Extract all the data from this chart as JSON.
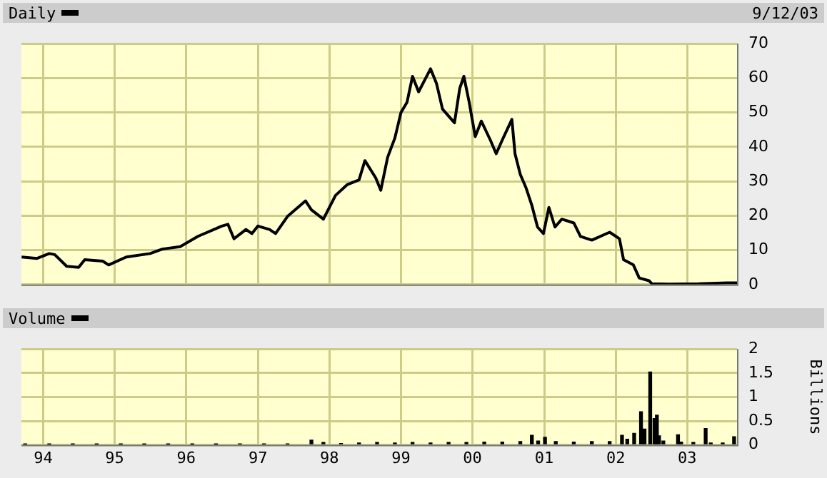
{
  "chart_data": [
    {
      "type": "line",
      "annotations": [
        "9/12/03"
      ],
      "legend": "top left",
      "grid": true,
      "tick_labels": "y",
      "xlim": [
        "1993-09-12",
        "2003-09-12"
      ],
      "xticks": [
        {
          "value": "1994-01-01",
          "label": null
        },
        {
          "value": "1995-01-01",
          "label": null
        },
        {
          "value": "1996-01-01",
          "label": null
        },
        {
          "value": "1997-01-01",
          "label": null
        },
        {
          "value": "1998-01-01",
          "label": null
        },
        {
          "value": "1999-01-01",
          "label": null
        },
        {
          "value": "2000-01-01",
          "label": null
        },
        {
          "value": "2001-01-01",
          "label": null
        },
        {
          "value": "2002-01-01",
          "label": null
        },
        {
          "value": "2003-01-01",
          "label": null
        }
      ],
      "ylim": [
        0,
        70
      ],
      "yticks": [
        0,
        10,
        20,
        30,
        40,
        50,
        60,
        70
      ],
      "series": [
        {
          "name": "Daily",
          "color": "#000000",
          "x": [
            "1993-09-13",
            "1993-12",
            "1994-02",
            "1994-03",
            "1994-05",
            "1994-07",
            "1994-08",
            "1994-11",
            "1994-12",
            "1995-03",
            "1995-07",
            "1995-09",
            "1995-12",
            "1996-03",
            "1996-07",
            "1996-08",
            "1996-09",
            "1996-11",
            "1996-12",
            "1997-01",
            "1997-03",
            "1997-04",
            "1997-06",
            "1997-09",
            "1997-10",
            "1997-12",
            "1998-02",
            "1998-04",
            "1998-06",
            "1998-07",
            "1998-08-25",
            "1998-09-20",
            "1998-10-25",
            "1998-12",
            "1999-01",
            "1999-02",
            "1999-03",
            "1999-04",
            "1999-06",
            "1999-07",
            "1999-08",
            "1999-10",
            "1999-10-28",
            "1999-11-18",
            "1999-12-15",
            "2000-01-15",
            "2000-02-15",
            "2000-04",
            "2000-05",
            "2000-06",
            "2000-07-20",
            "2000-08-05",
            "2000-09",
            "2000-10",
            "2000-10-30",
            "2000-11-28",
            "2000-12-28",
            "2001-01-25",
            "2001-02-25",
            "2001-04",
            "2001-06",
            "2001-07-05",
            "2001-09",
            "2001-12",
            "2002-01-20",
            "2002-02-10",
            "2002-04",
            "2002-05",
            "2002-06-20",
            "2002-07-05",
            "2002-10",
            "2003-03",
            "2003-08",
            "2003-09-12"
          ],
          "values": [
            8,
            7.6,
            9,
            8.7,
            5.3,
            5,
            7.2,
            6.8,
            5.7,
            8,
            9,
            10.3,
            11,
            14,
            17,
            17.5,
            13.3,
            16,
            14.8,
            17,
            16,
            14.8,
            19.8,
            24.3,
            21.7,
            19,
            25.9,
            29,
            30.4,
            36,
            31,
            27.4,
            37,
            42.6,
            50,
            53,
            60.5,
            56,
            62.7,
            58.5,
            51,
            47,
            57,
            60.5,
            53,
            43,
            47.5,
            42,
            38,
            42,
            48,
            38,
            32,
            28,
            23,
            16.7,
            14.8,
            22.4,
            16.7,
            19,
            17.9,
            14,
            12.9,
            15.2,
            13.3,
            7.2,
            5.7,
            1.9,
            1.1,
            0.2,
            0.1,
            0.2,
            0.5,
            0.5
          ]
        }
      ]
    },
    {
      "type": "bar",
      "legend": "top left",
      "grid": true,
      "ylabel": "Billions",
      "xlim": [
        "1993-09-12",
        "2003-09-12"
      ],
      "xticks": [
        {
          "value": "1994-01-01",
          "label": "94"
        },
        {
          "value": "1995-01-01",
          "label": "95"
        },
        {
          "value": "1996-01-01",
          "label": "96"
        },
        {
          "value": "1997-01-01",
          "label": "97"
        },
        {
          "value": "1998-01-01",
          "label": "98"
        },
        {
          "value": "1999-01-01",
          "label": "99"
        },
        {
          "value": "2000-01-01",
          "label": "00"
        },
        {
          "value": "2001-01-01",
          "label": "01"
        },
        {
          "value": "2002-01-01",
          "label": "02"
        },
        {
          "value": "2003-01-01",
          "label": "03"
        }
      ],
      "ylim": [
        0,
        2
      ],
      "yticks": [
        0,
        0.5,
        1,
        1.5,
        2
      ],
      "series": [
        {
          "name": "Volume",
          "color": "#000000",
          "x": [
            "1993-10",
            "1994-02",
            "1994-06",
            "1994-10",
            "1995-02",
            "1995-06",
            "1995-10",
            "1996-02",
            "1996-06",
            "1996-10",
            "1997-02",
            "1997-06",
            "1997-10",
            "1997-12",
            "1998-03",
            "1998-06",
            "1998-09",
            "1998-12",
            "1999-03",
            "1999-06",
            "1999-09",
            "1999-12",
            "2000-03",
            "2000-06",
            "2000-09",
            "2000-10-30",
            "2000-12",
            "2001-01-05",
            "2001-03",
            "2001-06",
            "2001-09",
            "2001-12",
            "2002-02-02",
            "2002-03",
            "2002-04-05",
            "2002-05-10",
            "2002-05-28",
            "2002-06-26",
            "2002-07-18",
            "2002-07-30",
            "2002-08-10",
            "2002-09",
            "2002-11-15",
            "2002-12",
            "2003-02",
            "2003-04-05",
            "2003-05",
            "2003-07",
            "2003-08-28"
          ],
          "values": [
            0.01,
            0.01,
            0.01,
            0.01,
            0.01,
            0.01,
            0.01,
            0.01,
            0.01,
            0.02,
            0.02,
            0.02,
            0.1,
            0.05,
            0.03,
            0.04,
            0.05,
            0.04,
            0.05,
            0.04,
            0.05,
            0.05,
            0.06,
            0.06,
            0.07,
            0.2,
            0.08,
            0.16,
            0.07,
            0.06,
            0.07,
            0.07,
            0.2,
            0.12,
            0.24,
            0.69,
            0.33,
            1.52,
            0.55,
            0.62,
            0.19,
            0.08,
            0.21,
            0.06,
            0.05,
            0.34,
            0.04,
            0.04,
            0.17
          ]
        }
      ]
    }
  ]
}
